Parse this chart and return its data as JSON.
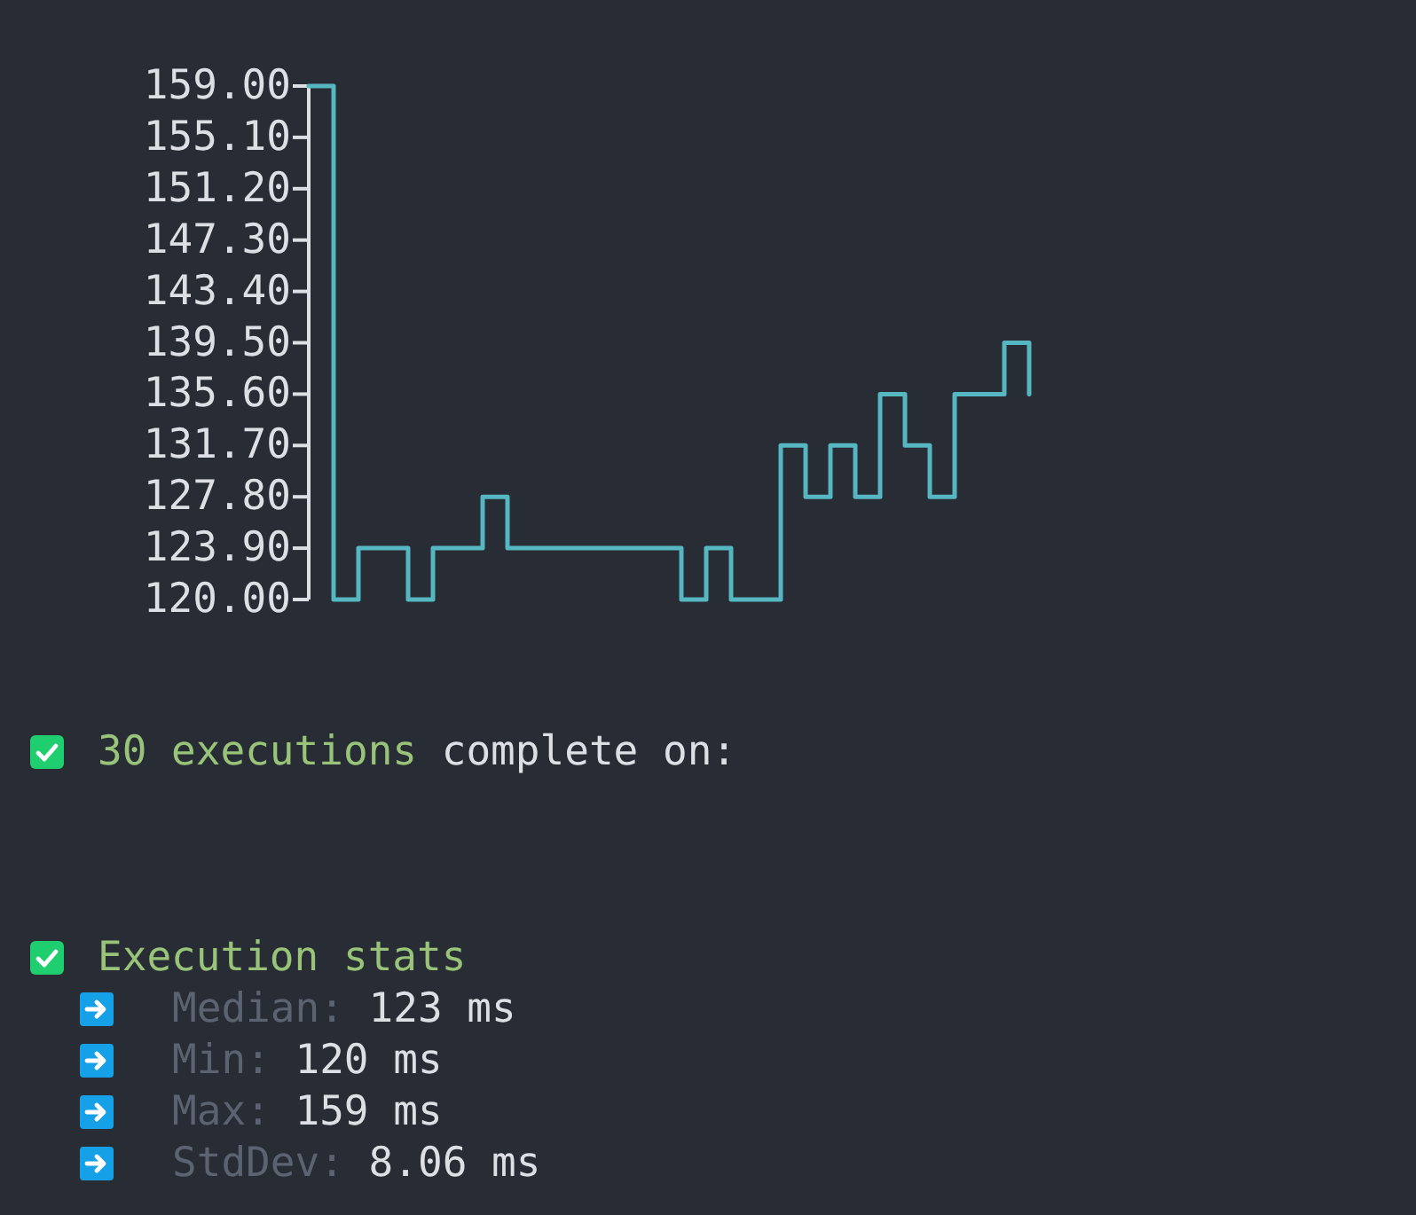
{
  "chart_data": {
    "type": "step",
    "categories": [
      null,
      null,
      null,
      null,
      null,
      null,
      null,
      null,
      null,
      null,
      null,
      null,
      null,
      null,
      null,
      null,
      null,
      null,
      null,
      null,
      null,
      null,
      null,
      null,
      null,
      null,
      null,
      null,
      null,
      null
    ],
    "series": [
      {
        "color": "#56b6c2",
        "values": [
          159,
          120,
          123.9,
          123.9,
          120,
          123.9,
          123.9,
          127.8,
          123.9,
          123.9,
          123.9,
          123.9,
          123.9,
          123.9,
          123.9,
          120,
          123.9,
          120,
          120,
          131.7,
          127.8,
          131.7,
          127.8,
          135.6,
          131.7,
          127.8,
          135.6,
          135.6,
          139.5,
          135.6
        ]
      }
    ],
    "ylim": [
      120,
      159
    ],
    "yticks": [
      {
        "value": 120,
        "label": "120.00"
      },
      {
        "value": 123.9,
        "label": "123.90"
      },
      {
        "value": 127.8,
        "label": "127.80"
      },
      {
        "value": 131.7,
        "label": "131.70"
      },
      {
        "value": 135.6,
        "label": "135.60"
      },
      {
        "value": 139.5,
        "label": "139.50"
      },
      {
        "value": 143.4,
        "label": "143.40"
      },
      {
        "value": 147.3,
        "label": "147.30"
      },
      {
        "value": 151.2,
        "label": "151.20"
      },
      {
        "value": 155.1,
        "label": "155.10"
      },
      {
        "value": 159,
        "label": "159.00"
      }
    ],
    "tick_labels": "y",
    "annotations": [
      "30 executions",
      "complete on:",
      "Execution stats",
      "Median:",
      "123 ms",
      "Min:",
      "120 ms",
      "Max:",
      "159 ms",
      "StdDev:",
      "8.06 ms"
    ]
  }
}
